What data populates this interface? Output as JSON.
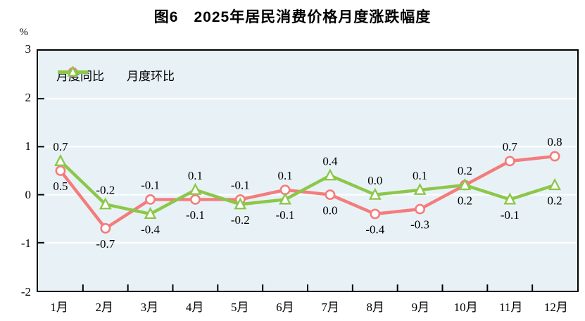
{
  "chart_data": {
    "type": "line",
    "title": "图6　2025年居民消费价格月度涨跌幅度",
    "y_unit": "%",
    "categories": [
      "1月",
      "2月",
      "3月",
      "4月",
      "5月",
      "6月",
      "7月",
      "8月",
      "9月",
      "10月",
      "11月",
      "12月"
    ],
    "series": [
      {
        "name": "月度同比",
        "marker": "circle",
        "color": "#f47c7c",
        "values": [
          0.5,
          -0.7,
          -0.1,
          -0.1,
          -0.1,
          0.1,
          0.0,
          -0.4,
          -0.3,
          0.2,
          0.7,
          0.8
        ]
      },
      {
        "name": "月度环比",
        "marker": "triangle",
        "color": "#8cc74a",
        "values": [
          0.7,
          -0.2,
          -0.4,
          0.1,
          -0.2,
          -0.1,
          0.4,
          0.0,
          0.1,
          0.2,
          -0.1,
          0.2
        ]
      }
    ],
    "ylim": [
      -2,
      3
    ],
    "yticks": [
      3,
      2,
      1,
      0,
      -1,
      -2
    ],
    "gridlines_at": [
      2,
      1,
      0,
      -1
    ],
    "grid": true,
    "legend_position": "top-left-inside",
    "value_label_format": "one-decimal",
    "colors": {
      "plot_bg": "#e8f2f6",
      "gridline": "#ffffff",
      "axis": "#000000",
      "text": "#000000"
    }
  }
}
